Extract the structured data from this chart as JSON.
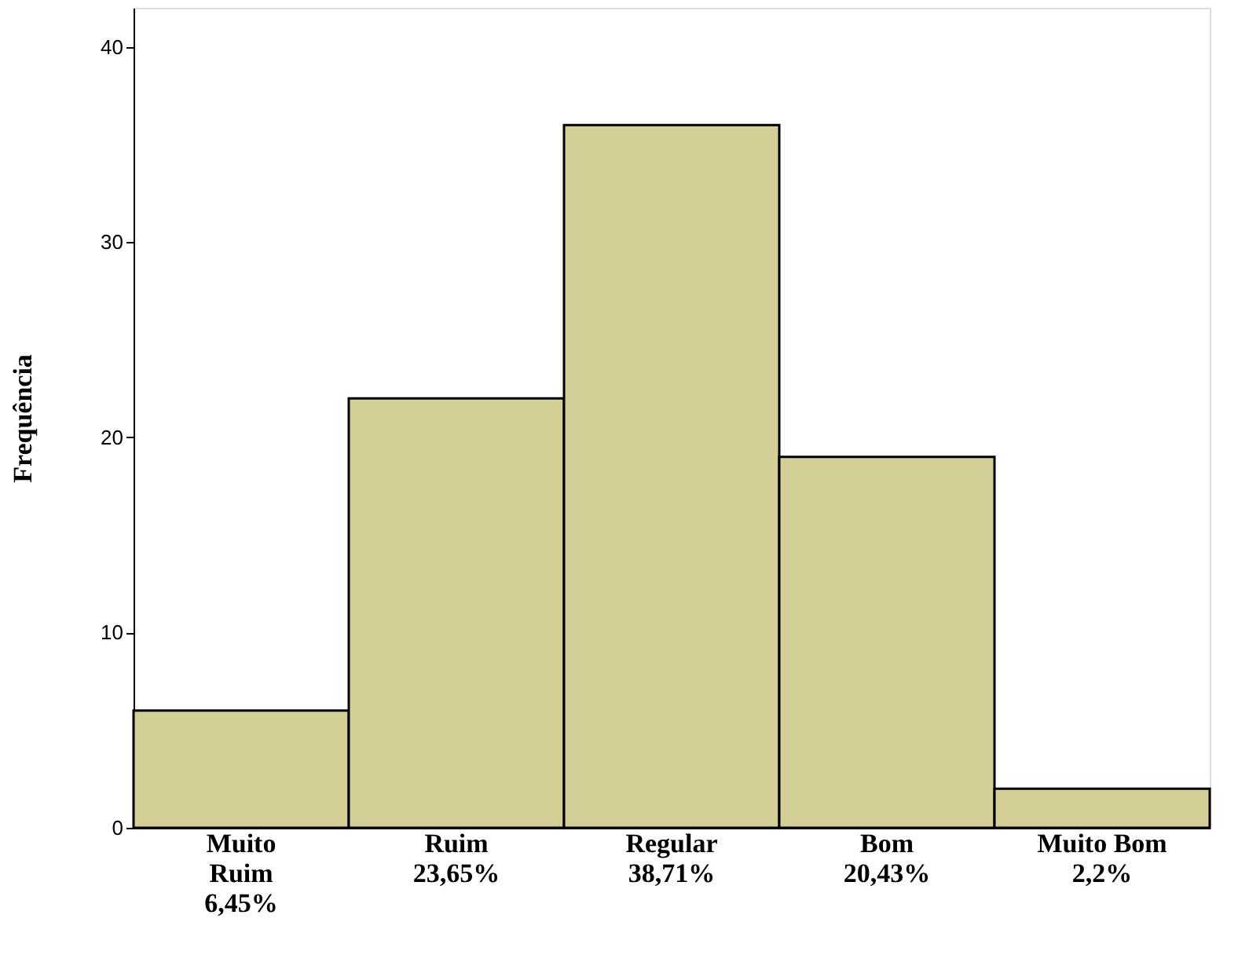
{
  "chart_data": {
    "type": "bar",
    "ylabel": "Frequência",
    "categories": [
      "Muito\nRuim\n6,45%",
      "Ruim\n23,65%",
      "Regular\n38,71%",
      "Bom\n20,43%",
      "Muito Bom\n2,2%"
    ],
    "values": [
      6,
      22,
      36,
      19,
      2
    ],
    "color": "#d4cf97",
    "ylim": [
      0,
      42
    ],
    "yticks": [
      0,
      10,
      20,
      30,
      40
    ],
    "grid": false
  }
}
